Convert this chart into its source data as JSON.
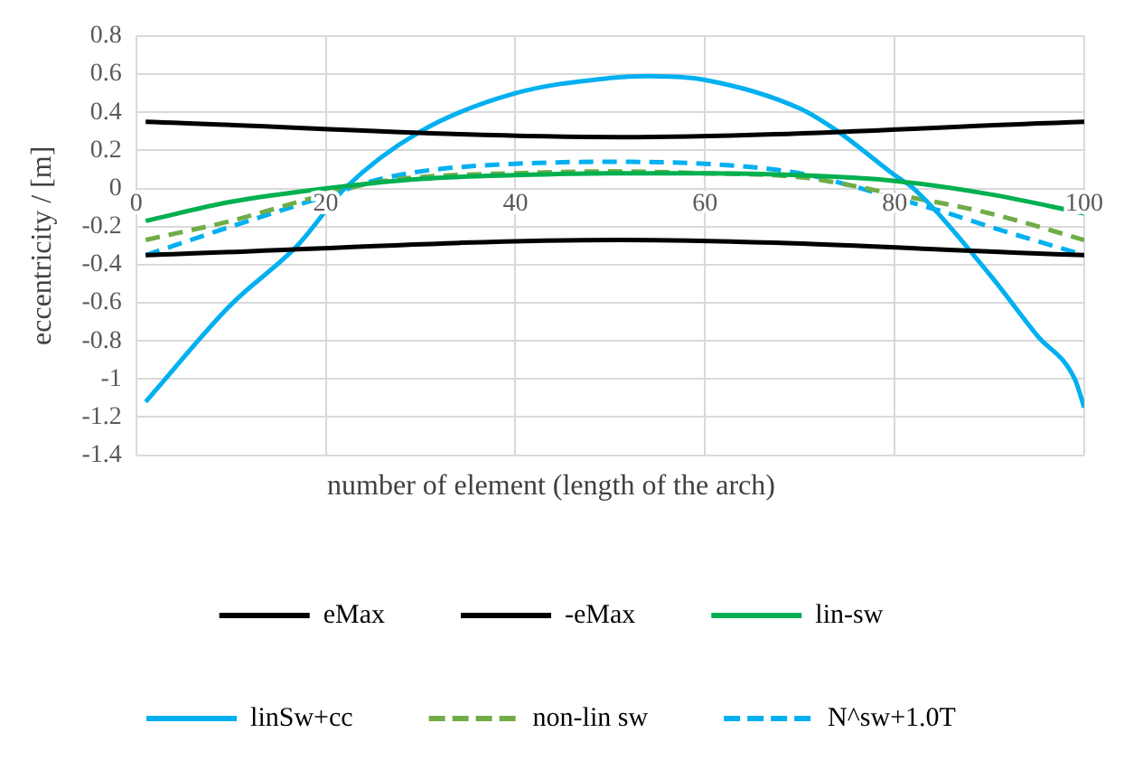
{
  "chart_data": {
    "type": "line",
    "xlabel": "number of element (length of the arch)",
    "ylabel": "eccentricity / [m]",
    "xlim": [
      0,
      100
    ],
    "xticks": [
      0,
      20,
      40,
      60,
      80,
      100
    ],
    "ylim": [
      -1.4,
      0.8
    ],
    "yticks": [
      -1.4,
      -1.2,
      -1,
      -0.8,
      -0.6,
      -0.4,
      -0.2,
      0,
      0.2,
      0.4,
      0.6,
      0.8
    ],
    "grid": true,
    "legend": "bottom",
    "marker": "none",
    "line_style": "solid",
    "series": [
      {
        "name": "eMax",
        "color": "#000000",
        "x": [
          1,
          51,
          100
        ],
        "values": [
          0.35,
          0.27,
          0.35
        ]
      },
      {
        "name": "-eMax",
        "color": "#000000",
        "x": [
          1,
          51,
          100
        ],
        "values": [
          -0.35,
          -0.27,
          -0.35
        ]
      },
      {
        "name": "lin-sw",
        "color": "#00b050",
        "x": [
          1,
          10,
          20,
          30,
          40,
          50,
          60,
          70,
          80,
          90,
          100
        ],
        "values": [
          -0.17,
          -0.07,
          0,
          0.05,
          0.07,
          0.08,
          0.08,
          0.07,
          0.04,
          -0.03,
          -0.13
        ]
      },
      {
        "name": "linSw+cc",
        "color": "#00b0f0",
        "x": [
          1,
          10,
          17,
          22,
          30,
          40,
          50,
          54,
          60,
          70,
          74,
          80,
          82,
          90,
          95,
          99,
          100
        ],
        "values": [
          -1.12,
          -0.61,
          -0.3,
          0,
          0.3,
          0.5,
          0.58,
          0.59,
          0.57,
          0.42,
          0.3,
          0.07,
          0,
          -0.45,
          -0.77,
          -1,
          -1.15
        ]
      },
      {
        "name": "non-lin sw",
        "color": "#70ad47",
        "line_style": "dashed",
        "x": [
          1,
          10,
          20,
          25,
          30,
          40,
          50,
          60,
          70,
          75,
          80,
          90,
          100
        ],
        "values": [
          -0.27,
          -0.17,
          -0.03,
          0.03,
          0.06,
          0.08,
          0.09,
          0.08,
          0.06,
          0.02,
          -0.03,
          -0.13,
          -0.27
        ]
      },
      {
        "name": "N^sw+1.0T",
        "color": "#00b0f0",
        "line_style": "dashed",
        "x": [
          1,
          10,
          20,
          25,
          30,
          40,
          50,
          60,
          70,
          75,
          80,
          85,
          90,
          100
        ],
        "values": [
          -0.35,
          -0.2,
          -0.04,
          0.04,
          0.09,
          0.13,
          0.14,
          0.13,
          0.08,
          0.02,
          -0.05,
          -0.12,
          -0.2,
          -0.35
        ]
      }
    ]
  }
}
